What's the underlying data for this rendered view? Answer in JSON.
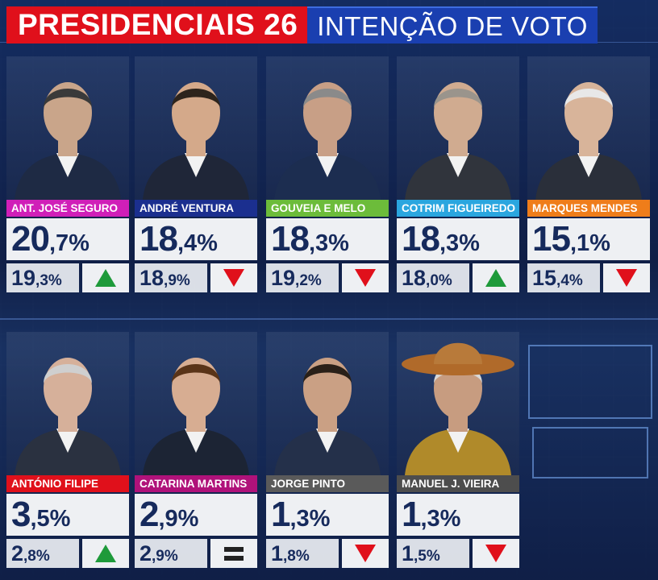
{
  "header": {
    "title_left": "PRESIDENCIAIS 26",
    "title_right": "INTENÇÃO DE VOTO",
    "colors": {
      "red": "#e0101b",
      "blue": "#1a3fb0"
    }
  },
  "candidates": [
    {
      "name": "ANT. JOSÉ SEGURO",
      "color": "#d01fb8",
      "pct_int": "20",
      "pct_dec": ",7%",
      "prev_int": "19",
      "prev_dec": ",3%",
      "trend": "up"
    },
    {
      "name": "ANDRÉ VENTURA",
      "color": "#1b2f8f",
      "pct_int": "18",
      "pct_dec": ",4%",
      "prev_int": "18",
      "prev_dec": ",9%",
      "trend": "down"
    },
    {
      "name": "GOUVEIA E MELO",
      "color": "#6cbc3a",
      "pct_int": "18",
      "pct_dec": ",3%",
      "prev_int": "19",
      "prev_dec": ",2%",
      "trend": "down"
    },
    {
      "name": "COTRIM FIGUEIREDO",
      "color": "#2aa6df",
      "pct_int": "18",
      "pct_dec": ",3%",
      "prev_int": "18",
      "prev_dec": ",0%",
      "trend": "up"
    },
    {
      "name": "MARQUES MENDES",
      "color": "#ef7d1a",
      "pct_int": "15",
      "pct_dec": ",1%",
      "prev_int": "15",
      "prev_dec": ",4%",
      "trend": "down"
    },
    {
      "name": "ANTÓNIO FILIPE",
      "color": "#e0101b",
      "pct_int": "3",
      "pct_dec": ",5%",
      "prev_int": "2",
      "prev_dec": ",8%",
      "trend": "up"
    },
    {
      "name": "CATARINA MARTINS",
      "color": "#b0127a",
      "pct_int": "2",
      "pct_dec": ",9%",
      "prev_int": "2",
      "prev_dec": ",9%",
      "trend": "equal"
    },
    {
      "name": "JORGE PINTO",
      "color": "#5a5a5a",
      "pct_int": "1",
      "pct_dec": ",3%",
      "prev_int": "1",
      "prev_dec": ",8%",
      "trend": "down"
    },
    {
      "name": "MANUEL J. VIEIRA",
      "color": "#4d4d4d",
      "pct_int": "1",
      "pct_dec": ",3%",
      "prev_int": "1",
      "prev_dec": ",5%",
      "trend": "down"
    }
  ],
  "chart_data": {
    "type": "table",
    "title": "PRESIDENCIAIS 26",
    "subtitle": "INTENÇÃO DE VOTO",
    "categories": [
      "ANT. JOSÉ SEGURO",
      "ANDRÉ VENTURA",
      "GOUVEIA E MELO",
      "COTRIM FIGUEIREDO",
      "MARQUES MENDES",
      "ANTÓNIO FILIPE",
      "CATARINA MARTINS",
      "JORGE PINTO",
      "MANUEL J. VIEIRA"
    ],
    "series": [
      {
        "values": [
          20.7,
          18.4,
          18.3,
          18.3,
          15.1,
          3.5,
          2.9,
          1.3,
          1.3
        ]
      },
      {
        "values": [
          19.3,
          18.9,
          19.2,
          18.0,
          15.4,
          2.8,
          2.9,
          1.8,
          1.5
        ]
      }
    ],
    "trend": [
      "up",
      "down",
      "down",
      "up",
      "down",
      "up",
      "equal",
      "down",
      "down"
    ]
  }
}
